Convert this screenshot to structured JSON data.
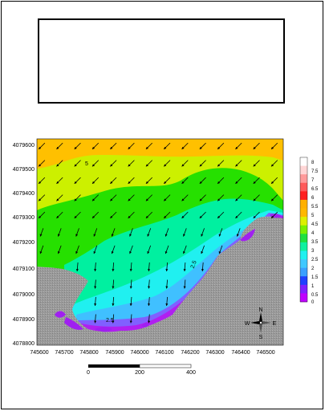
{
  "map": {
    "y_ticks": [
      "4079600",
      "4079500",
      "4079400",
      "4079300",
      "4079200",
      "4079100",
      "4079000",
      "4078900",
      "4078800"
    ],
    "x_ticks": [
      "745600",
      "745700",
      "745800",
      "745900",
      "746000",
      "746100",
      "746200",
      "746300",
      "746400",
      "746500"
    ],
    "contour_labels": [
      "5",
      "2.5",
      "2.5"
    ]
  },
  "legend": {
    "values": [
      "8",
      "7.5",
      "7",
      "6.5",
      "6",
      "5.5",
      "5",
      "4.5",
      "4",
      "3.5",
      "3",
      "2.5",
      "2",
      "1.5",
      "1",
      "0.5",
      "0"
    ],
    "colors": [
      "#ffffff",
      "#ffd6d6",
      "#ff9a9a",
      "#ff5a5a",
      "#ff2020",
      "#ffb000",
      "#ffb800",
      "#ddf000",
      "#7cf000",
      "#20e040",
      "#10f0a0",
      "#20f0f0",
      "#40c8ff",
      "#3aa0ff",
      "#2040ff",
      "#8020ff",
      "#c000ff"
    ]
  },
  "scalebar": {
    "labels": [
      "0",
      "200",
      "400"
    ]
  },
  "north_arrow": {
    "n": "N",
    "s": "S",
    "e": "E",
    "w": "W"
  },
  "colors": {
    "land": "#9e9e9e",
    "deep": "#ffc000"
  }
}
